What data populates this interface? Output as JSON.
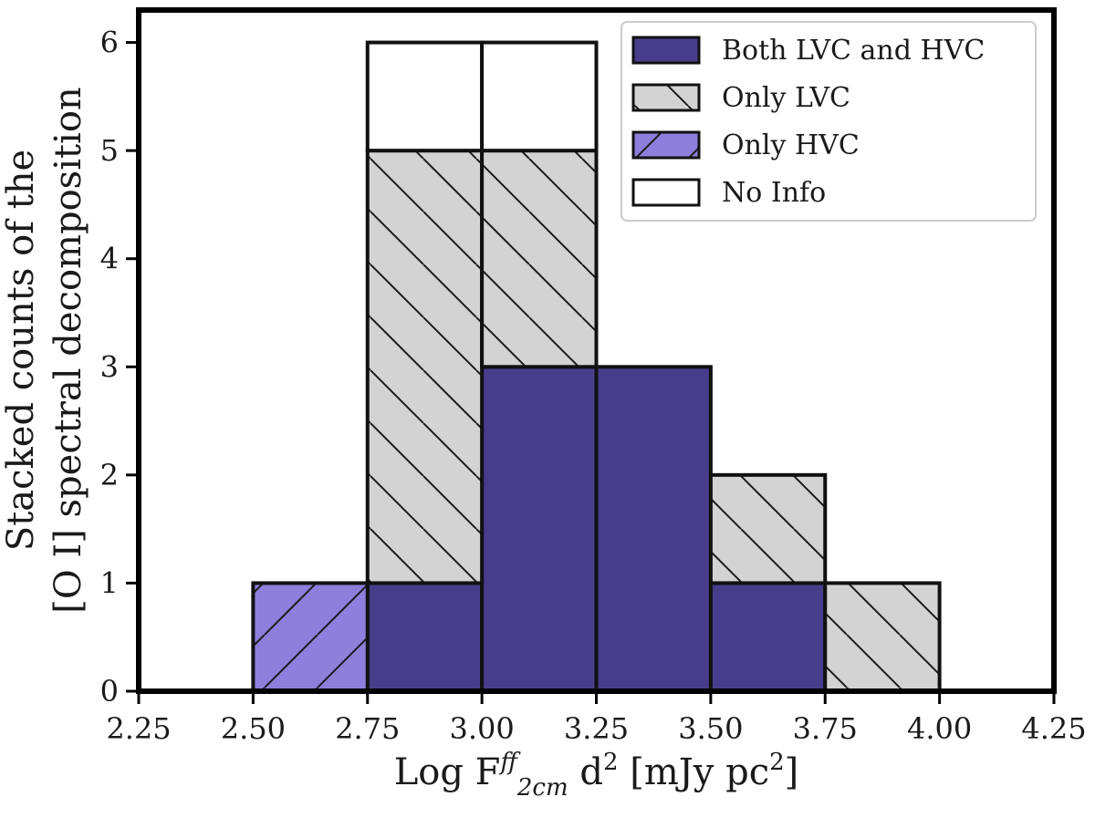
{
  "chart_data": {
    "type": "bar",
    "subtype": "stacked-histogram",
    "title": "",
    "bin_edges": [
      2.5,
      2.75,
      3.0,
      3.25,
      3.5,
      3.75,
      4.0
    ],
    "xlim": [
      2.25,
      4.25
    ],
    "ylim": [
      0,
      6.3
    ],
    "xticks": [
      2.25,
      2.5,
      2.75,
      3.0,
      3.25,
      3.5,
      3.75,
      4.0,
      4.25
    ],
    "xtick_labels": [
      "2.25",
      "2.50",
      "2.75",
      "3.00",
      "3.25",
      "3.50",
      "3.75",
      "4.00",
      "4.25"
    ],
    "yticks": [
      0,
      1,
      2,
      3,
      4,
      5,
      6
    ],
    "ytick_labels": [
      "0",
      "1",
      "2",
      "3",
      "4",
      "5",
      "6"
    ],
    "xlabel": {
      "prefix": "Log F",
      "sup": "ff",
      "sub": "2cm",
      "mid": " d",
      "sup2": "2",
      "unit": " [mJy pc",
      "unit_sup": "2",
      "close": "]"
    },
    "ylabel_lines": [
      "[O I] spectral decomposition",
      "Stacked counts of the"
    ],
    "legend_position": "top-right",
    "series": [
      {
        "name": "Both LVC and HVC",
        "color": "#483d8b",
        "hatch": "none",
        "values": [
          0,
          1,
          3,
          3,
          1,
          0
        ]
      },
      {
        "name": "Only LVC",
        "color": "#d3d3d3",
        "hatch": "back",
        "values": [
          0,
          4,
          2,
          0,
          1,
          1
        ]
      },
      {
        "name": "Only HVC",
        "color": "#8d7fdb",
        "hatch": "fwd",
        "values": [
          1,
          0,
          0,
          0,
          0,
          0
        ]
      },
      {
        "name": "No Info",
        "color": "#ffffff",
        "hatch": "none",
        "values": [
          0,
          1,
          1,
          0,
          0,
          0
        ]
      }
    ]
  }
}
